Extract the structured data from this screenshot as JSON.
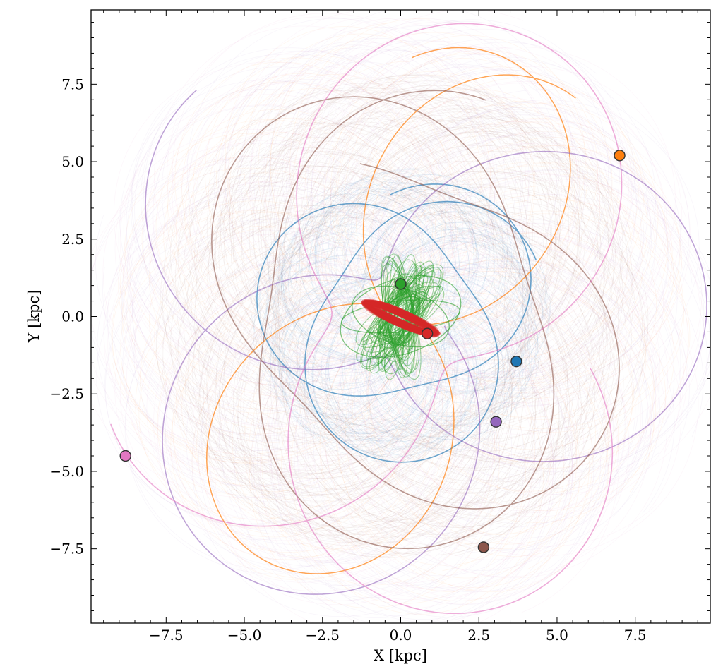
{
  "chart_data": {
    "type": "line",
    "xlabel": "X [kpc]",
    "ylabel": "Y [kpc]",
    "xlim": [
      -9.9,
      9.9
    ],
    "ylim": [
      -9.9,
      9.9
    ],
    "xticks": [
      -7.5,
      -5.0,
      -2.5,
      0.0,
      2.5,
      5.0,
      7.5
    ],
    "yticks": [
      -7.5,
      -5.0,
      -2.5,
      0.0,
      2.5,
      5.0,
      7.5
    ],
    "xtick_labels": [
      "−7.5",
      "−5.0",
      "−2.5",
      "0.0",
      "2.5",
      "5.0",
      "7.5"
    ],
    "ytick_labels": [
      "−7.5",
      "−5.0",
      "−2.5",
      "0.0",
      "2.5",
      "5.0",
      "7.5"
    ],
    "grid": false,
    "series": [
      {
        "color": "#1f77b4",
        "current_position": {
          "x": 3.7,
          "y": -1.45
        }
      },
      {
        "color": "#ff7f0e",
        "current_position": {
          "x": 7.0,
          "y": 5.2
        }
      },
      {
        "color": "#2ca02c",
        "current_position": {
          "x": 0.0,
          "y": 1.05
        }
      },
      {
        "color": "#d62728",
        "current_position": {
          "x": 0.85,
          "y": -0.55
        }
      },
      {
        "color": "#9467bd",
        "current_position": {
          "x": 3.05,
          "y": -3.4
        }
      },
      {
        "color": "#8c564b",
        "current_position": {
          "x": 2.65,
          "y": -7.45
        }
      },
      {
        "color": "#e377c2",
        "current_position": {
          "x": -8.8,
          "y": -4.5
        }
      }
    ]
  }
}
